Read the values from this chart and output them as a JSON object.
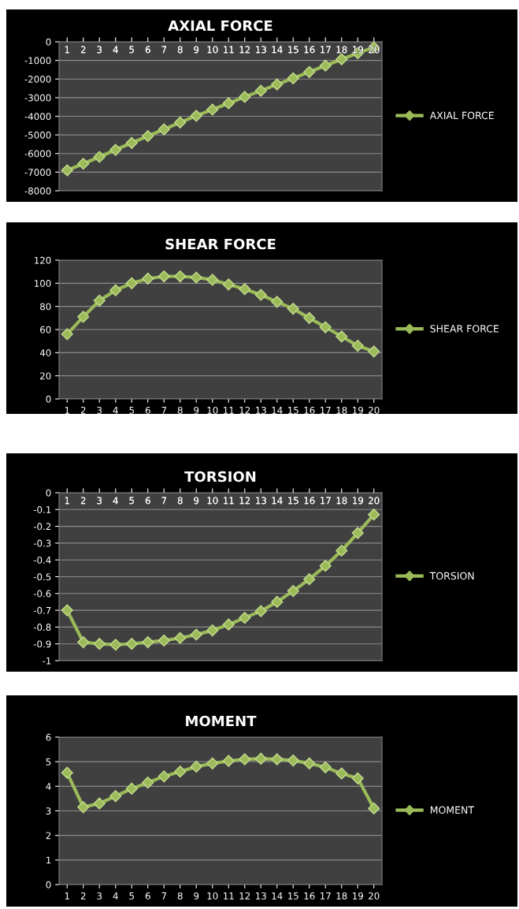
{
  "chart_data": [
    {
      "type": "line",
      "title": "AXIAL FORCE",
      "categories": [
        "1",
        "2",
        "3",
        "4",
        "5",
        "6",
        "7",
        "8",
        "9",
        "10",
        "11",
        "12",
        "13",
        "14",
        "15",
        "16",
        "17",
        "18",
        "19",
        "20"
      ],
      "series": [
        {
          "name": "AXIAL FORCE",
          "color": "#9bbb59",
          "values": [
            -6900,
            -6550,
            -6180,
            -5800,
            -5430,
            -5060,
            -4700,
            -4330,
            -3970,
            -3640,
            -3300,
            -2960,
            -2630,
            -2290,
            -1960,
            -1620,
            -1280,
            -940,
            -610,
            -300
          ]
        }
      ],
      "ylim": [
        -8000,
        0
      ],
      "yticks": [
        -8000,
        -7000,
        -6000,
        -5000,
        -4000,
        -3000,
        -2000,
        -1000,
        0
      ],
      "grid": "y",
      "legend": "right",
      "marker": "diamond",
      "line_style": "solid"
    },
    {
      "type": "line",
      "title": "SHEAR FORCE",
      "categories": [
        "1",
        "2",
        "3",
        "4",
        "5",
        "6",
        "7",
        "8",
        "9",
        "10",
        "11",
        "12",
        "13",
        "14",
        "15",
        "16",
        "17",
        "18",
        "19",
        "20"
      ],
      "series": [
        {
          "name": "SHEAR FORCE",
          "color": "#9bbb59",
          "values": [
            56,
            71,
            85,
            94,
            100,
            104,
            106,
            106,
            105,
            103,
            99,
            95,
            90,
            84,
            78,
            70,
            62,
            54,
            46,
            41
          ]
        }
      ],
      "ylim": [
        0,
        120
      ],
      "yticks": [
        0,
        20,
        40,
        60,
        80,
        100,
        120
      ],
      "grid": "y",
      "legend": "right",
      "marker": "diamond",
      "line_style": "solid"
    },
    {
      "type": "line",
      "title": "TORSION",
      "categories": [
        "1",
        "2",
        "3",
        "4",
        "5",
        "6",
        "7",
        "8",
        "9",
        "10",
        "11",
        "12",
        "13",
        "14",
        "15",
        "16",
        "17",
        "18",
        "19",
        "20"
      ],
      "series": [
        {
          "name": "TORSION",
          "color": "#9bbb59",
          "values": [
            -0.7,
            -0.89,
            -0.9,
            -0.905,
            -0.9,
            -0.89,
            -0.88,
            -0.865,
            -0.845,
            -0.82,
            -0.785,
            -0.745,
            -0.705,
            -0.65,
            -0.585,
            -0.515,
            -0.435,
            -0.345,
            -0.24,
            -0.13
          ]
        }
      ],
      "ylim": [
        -1,
        0
      ],
      "yticks": [
        -1,
        -0.9,
        -0.8,
        -0.7,
        -0.6,
        -0.5,
        -0.4,
        -0.3,
        -0.2,
        -0.1,
        0
      ],
      "grid": "y",
      "legend": "right",
      "marker": "diamond",
      "line_style": "solid"
    },
    {
      "type": "line",
      "title": "MOMENT",
      "categories": [
        "1",
        "2",
        "3",
        "4",
        "5",
        "6",
        "7",
        "8",
        "9",
        "10",
        "11",
        "12",
        "13",
        "14",
        "15",
        "16",
        "17",
        "18",
        "19",
        "20"
      ],
      "series": [
        {
          "name": "MOMENT",
          "color": "#9bbb59",
          "values": [
            4.55,
            3.15,
            3.3,
            3.6,
            3.9,
            4.15,
            4.4,
            4.6,
            4.8,
            4.93,
            5.03,
            5.1,
            5.12,
            5.1,
            5.05,
            4.93,
            4.77,
            4.52,
            4.32,
            3.1
          ]
        }
      ],
      "ylim": [
        0,
        6
      ],
      "yticks": [
        0,
        1,
        2,
        3,
        4,
        5,
        6
      ],
      "grid": "y",
      "legend": "right",
      "marker": "diamond",
      "line_style": "solid"
    }
  ]
}
